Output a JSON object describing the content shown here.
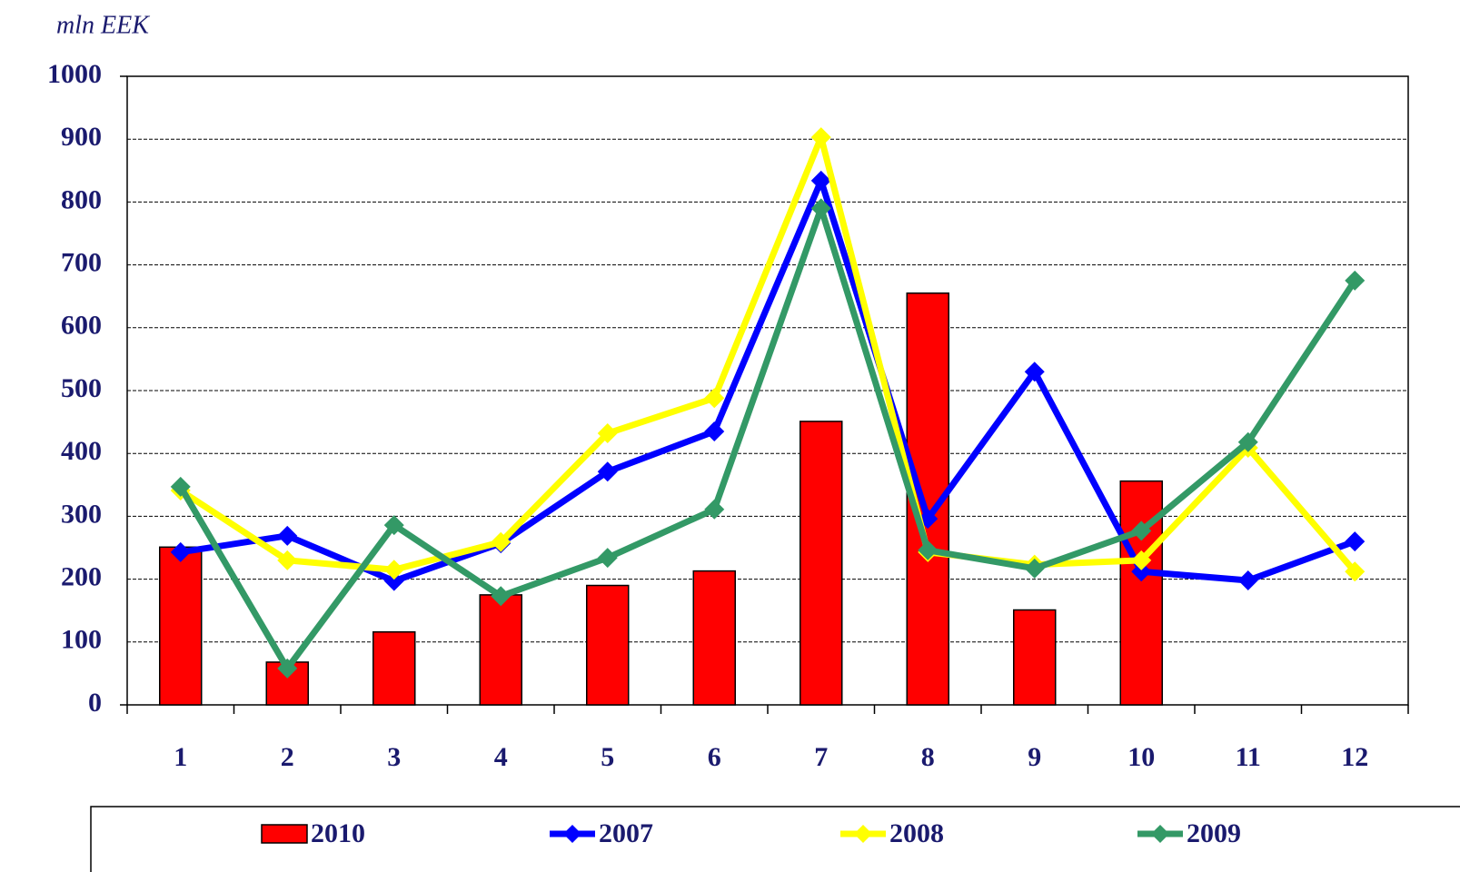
{
  "chart_data": {
    "type": "bar",
    "y_label": "mln EEK",
    "categories": [
      "1",
      "2",
      "3",
      "4",
      "5",
      "6",
      "7",
      "8",
      "9",
      "10",
      "11",
      "12"
    ],
    "series": [
      {
        "name": "2010",
        "type": "bar",
        "color": "#ff0000",
        "values": [
          251,
          68,
          116,
          175,
          190,
          213,
          451,
          655,
          151,
          356,
          null,
          null
        ]
      },
      {
        "name": "2007",
        "type": "line",
        "color": "#0000ff",
        "values": [
          243,
          269,
          197,
          257,
          371,
          435,
          834,
          296,
          530,
          212,
          198,
          260
        ]
      },
      {
        "name": "2008",
        "type": "line",
        "color": "#ffff00",
        "values": [
          341,
          230,
          215,
          259,
          432,
          488,
          903,
          243,
          223,
          230,
          409,
          212
        ]
      },
      {
        "name": "2009",
        "type": "line",
        "color": "#339966",
        "values": [
          347,
          58,
          286,
          173,
          234,
          311,
          790,
          246,
          217,
          277,
          418,
          675
        ]
      }
    ],
    "ylim": [
      0,
      1000
    ],
    "yticks": [
      0,
      100,
      200,
      300,
      400,
      500,
      600,
      700,
      800,
      900,
      1000
    ],
    "grid": true,
    "legend": "bottom"
  }
}
